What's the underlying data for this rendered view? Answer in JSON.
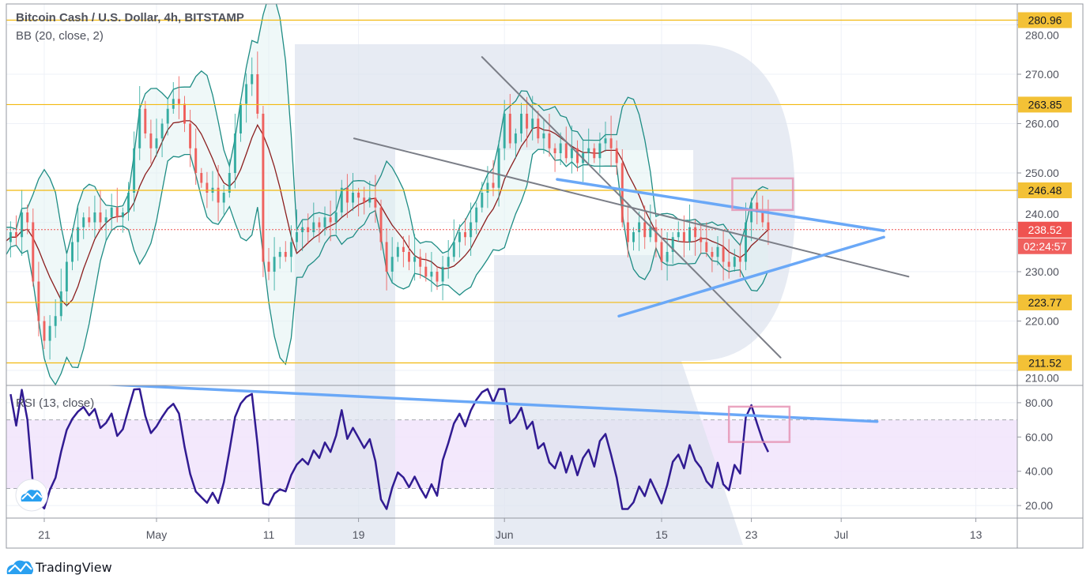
{
  "header": {
    "title": "Bitcoin Cash / U.S. Dollar, 4h, BITSTAMP",
    "indicator_bb": "BB (20, close, 2)",
    "indicator_rsi": "RSI (13, close)"
  },
  "branding": {
    "name": "TradingView"
  },
  "colors": {
    "up": "#26a69a",
    "down": "#ef5350",
    "bb_band": "#1e8c84",
    "bb_basis": "#8b1e1e",
    "bb_fill": "#e0f2f1",
    "level": "#f2b90f",
    "level_badge": "#f3c136",
    "last_price": "#ef5350",
    "trend_gray": "#7b7e87",
    "trend_blue": "#6aa8f7",
    "highlight": "#e58fb0",
    "rsi_line": "#311b92",
    "rsi_band": "#f1e4fc",
    "watermark": "#dde3ee"
  },
  "chart_data": {
    "type": "candlestick",
    "title": "Bitcoin Cash / U.S. Dollar, 4h, BITSTAMP",
    "x_unit": "days since Apr 21",
    "xlim": [
      -3.38,
      86.69
    ],
    "ylim": [
      206.96,
      284.24
    ],
    "x_ticks": [
      {
        "label": "21",
        "day": 0
      },
      {
        "label": "May",
        "day": 10
      },
      {
        "label": "11",
        "day": 20
      },
      {
        "label": "19",
        "day": 28
      },
      {
        "label": "Jun",
        "day": 41
      },
      {
        "label": "15",
        "day": 55
      },
      {
        "label": "23",
        "day": 63
      },
      {
        "label": "Jul",
        "day": 71
      },
      {
        "label": "13",
        "day": 83
      }
    ],
    "y_ticks": [
      {
        "label": "210.00",
        "value": 210
      },
      {
        "label": "220.00",
        "value": 220
      },
      {
        "label": "230.00",
        "value": 230
      },
      {
        "label": "240.00",
        "value": 240
      },
      {
        "label": "250.00",
        "value": 250
      },
      {
        "label": "260.00",
        "value": 260
      },
      {
        "label": "270.00",
        "value": 270
      },
      {
        "label": "280.00",
        "value": 280
      }
    ],
    "series_start_day": -3.5,
    "series_step_days": 0.5,
    "closes": [
      236,
      238,
      237,
      242,
      240,
      228,
      220,
      216,
      219,
      221,
      226,
      232,
      236,
      239,
      241,
      240,
      242,
      240,
      241,
      243,
      241,
      242,
      246,
      255,
      263,
      258,
      255,
      257,
      260,
      263,
      265,
      264,
      260,
      255,
      250,
      248,
      246,
      247,
      244,
      246,
      250,
      258,
      264,
      268,
      270,
      262,
      232,
      230,
      233,
      234,
      233,
      236,
      238,
      239,
      238,
      240,
      239,
      241,
      240,
      242,
      247,
      244,
      246,
      245,
      244,
      245,
      243,
      236,
      230,
      233,
      235,
      234,
      232,
      233,
      231,
      229,
      230,
      228,
      231,
      233,
      236,
      238,
      237,
      240,
      243,
      246,
      248,
      247,
      255,
      262,
      256,
      258,
      262,
      259,
      261,
      257,
      258,
      255,
      254,
      256,
      253,
      255,
      252,
      254,
      255,
      253,
      256,
      257,
      255,
      252,
      240,
      236,
      238,
      240,
      237,
      239,
      236,
      232,
      234,
      237,
      238,
      236,
      239,
      237,
      236,
      234,
      233,
      235,
      232,
      231,
      233,
      232,
      240,
      244,
      242,
      240,
      238.52
    ],
    "bollinger": {
      "period": 20,
      "source": "close",
      "stddev": 2
    },
    "levels": [
      {
        "label": "280.96",
        "value": 280.96
      },
      {
        "label": "263.85",
        "value": 263.85
      },
      {
        "label": "246.48",
        "value": 246.48
      },
      {
        "label": "223.77",
        "value": 223.77
      },
      {
        "label": "211.52",
        "value": 211.52
      }
    ],
    "last_price": {
      "label": "238.52",
      "value": 238.52,
      "countdown": "02:24:57"
    },
    "trendlines": [
      {
        "name": "channel-upper",
        "color": "gray",
        "from": [
          39.0,
          273.5
        ],
        "to": [
          65.6,
          212.6
        ]
      },
      {
        "name": "channel-lower",
        "color": "gray",
        "from": [
          27.6,
          257.0
        ],
        "to": [
          77.0,
          229.0
        ]
      },
      {
        "name": "triangle-upper",
        "color": "blue",
        "from": [
          45.7,
          248.7
        ],
        "to": [
          74.8,
          238.3
        ]
      },
      {
        "name": "triangle-lower",
        "color": "blue",
        "from": [
          51.2,
          221.0
        ],
        "to": [
          74.8,
          237.0
        ]
      }
    ],
    "highlight_box": {
      "day_from": 61.3,
      "day_to": 66.7,
      "price_from": 242.5,
      "price_to": 248.9
    },
    "rsi": {
      "period": 13,
      "source": "close",
      "ylim": [
        12.7,
        90.1
      ],
      "band": [
        30,
        70
      ],
      "ticks": [
        {
          "label": "20.00",
          "value": 20
        },
        {
          "label": "40.00",
          "value": 40
        },
        {
          "label": "60.00",
          "value": 60
        },
        {
          "label": "80.00",
          "value": 80
        }
      ],
      "trendline": {
        "from": [
          3.1,
          91.5
        ],
        "to": [
          74.2,
          69.0
        ]
      },
      "highlight_box": {
        "day_from": 61.0,
        "day_to": 66.4,
        "value_from": 57.1,
        "value_to": 77.7
      }
    }
  }
}
